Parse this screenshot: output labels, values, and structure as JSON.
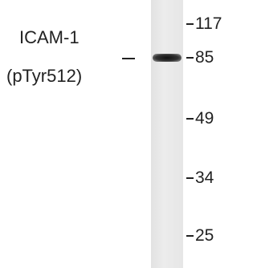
{
  "protein": "ICAM-1",
  "modification": "(pTyr512)",
  "markers": [
    "117",
    "85",
    "49",
    "34",
    "25"
  ]
}
